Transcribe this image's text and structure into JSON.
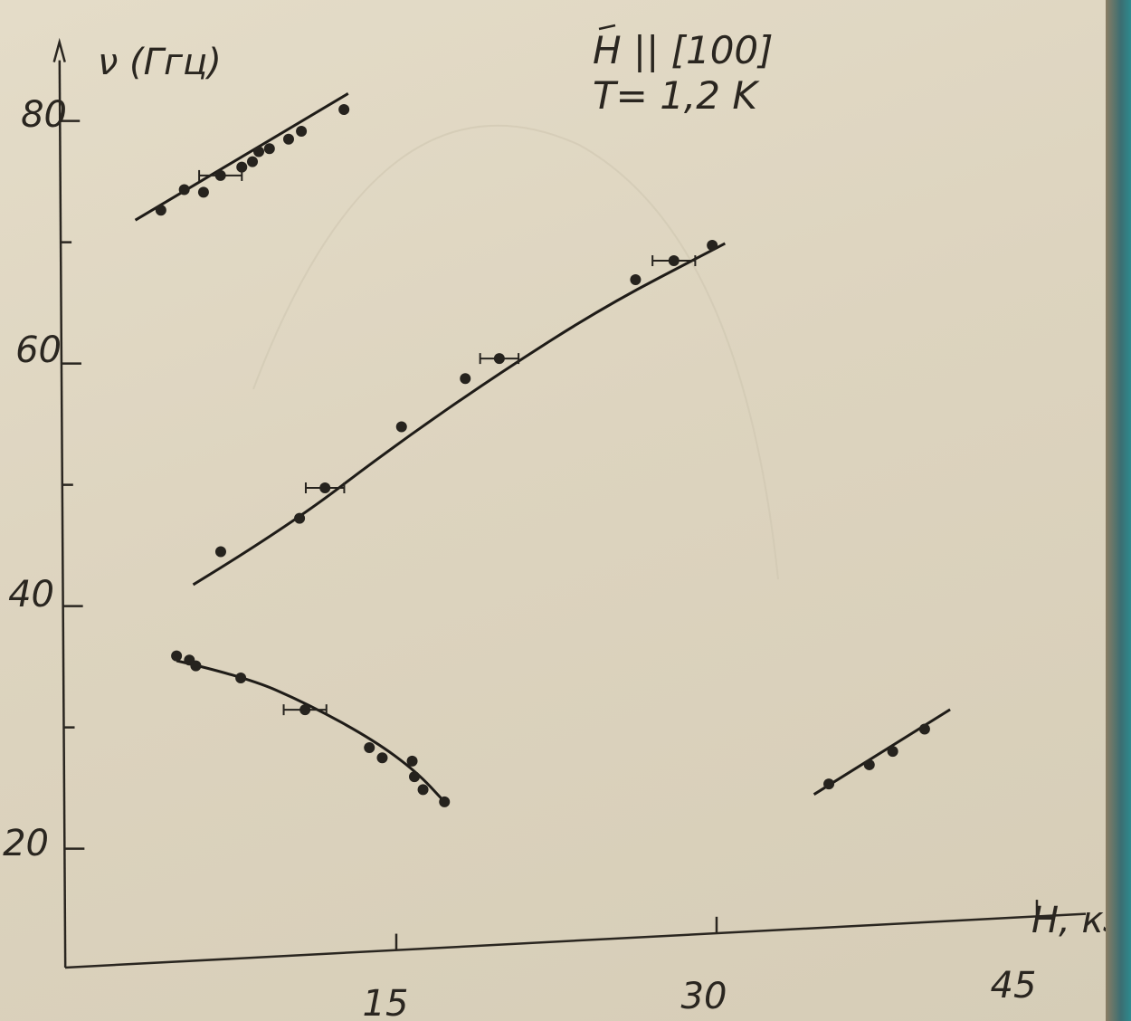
{
  "chart_data": {
    "type": "scatter",
    "title": "",
    "xlabel": "H, кЭ",
    "ylabel": "ν (Ггц)",
    "annotations": [
      "H || [100]",
      "T= 1,2 K"
    ],
    "xticks": [
      "15",
      "30",
      "45"
    ],
    "yticks": [
      "20",
      "40",
      "60",
      "80"
    ],
    "xlim": [
      -15,
      46
    ],
    "ylim": [
      9.5,
      86
    ],
    "grid": false,
    "series": [
      {
        "points": [
          [
            4.2,
            72.2
          ],
          [
            5.3,
            73.8
          ],
          [
            6.2,
            73.5
          ],
          [
            7.0,
            74.8
          ],
          [
            8.0,
            75.4
          ],
          [
            8.5,
            75.8
          ],
          [
            8.8,
            76.6
          ],
          [
            9.3,
            76.8
          ],
          [
            10.2,
            77.5
          ],
          [
            10.8,
            78.1
          ],
          [
            12.8,
            79.7
          ]
        ],
        "fit": [
          [
            3.0,
            71.5
          ],
          [
            13.0,
            81.0
          ]
        ],
        "xerr": [
          [
            7.0,
            74.8,
            1.0
          ]
        ]
      },
      {
        "points": [
          [
            6.9,
            43.8
          ],
          [
            10.6,
            46.2
          ],
          [
            11.8,
            48.6
          ],
          [
            15.4,
            53.3
          ],
          [
            18.4,
            57.0
          ],
          [
            20.0,
            58.5
          ],
          [
            26.4,
            64.4
          ],
          [
            28.2,
            65.8
          ],
          [
            30.0,
            66.9
          ]
        ],
        "fit": [
          [
            5.6,
            41.2
          ],
          [
            10.0,
            45.5
          ],
          [
            15.0,
            51.7
          ],
          [
            20.0,
            57.3
          ],
          [
            25.0,
            62.4
          ],
          [
            30.0,
            66.5
          ],
          [
            30.6,
            67.0
          ]
        ],
        "xerr": [
          [
            11.8,
            48.6,
            0.9
          ],
          [
            20.0,
            58.5,
            0.9
          ],
          [
            28.2,
            65.8,
            1.0
          ]
        ]
      },
      {
        "points": [
          [
            4.8,
            35.4
          ],
          [
            5.4,
            35.0
          ],
          [
            5.7,
            34.5
          ],
          [
            7.8,
            33.3
          ],
          [
            10.8,
            30.4
          ],
          [
            13.8,
            27.0
          ],
          [
            14.4,
            26.1
          ],
          [
            15.8,
            25.7
          ],
          [
            15.9,
            24.4
          ],
          [
            16.3,
            23.3
          ],
          [
            17.3,
            22.2
          ]
        ],
        "fit": [
          [
            4.8,
            35.0
          ],
          [
            8.0,
            33.4
          ],
          [
            11.0,
            30.8
          ],
          [
            14.0,
            27.6
          ],
          [
            16.0,
            24.8
          ],
          [
            17.3,
            22.2
          ]
        ],
        "xerr": [
          [
            10.8,
            30.4,
            1.0
          ]
        ]
      },
      {
        "points": [
          [
            35.3,
            22.0
          ],
          [
            37.2,
            23.4
          ],
          [
            38.3,
            24.4
          ],
          [
            39.8,
            26.1
          ]
        ],
        "fit": [
          [
            34.6,
            21.2
          ],
          [
            41.0,
            27.6
          ]
        ],
        "xerr": []
      }
    ]
  }
}
